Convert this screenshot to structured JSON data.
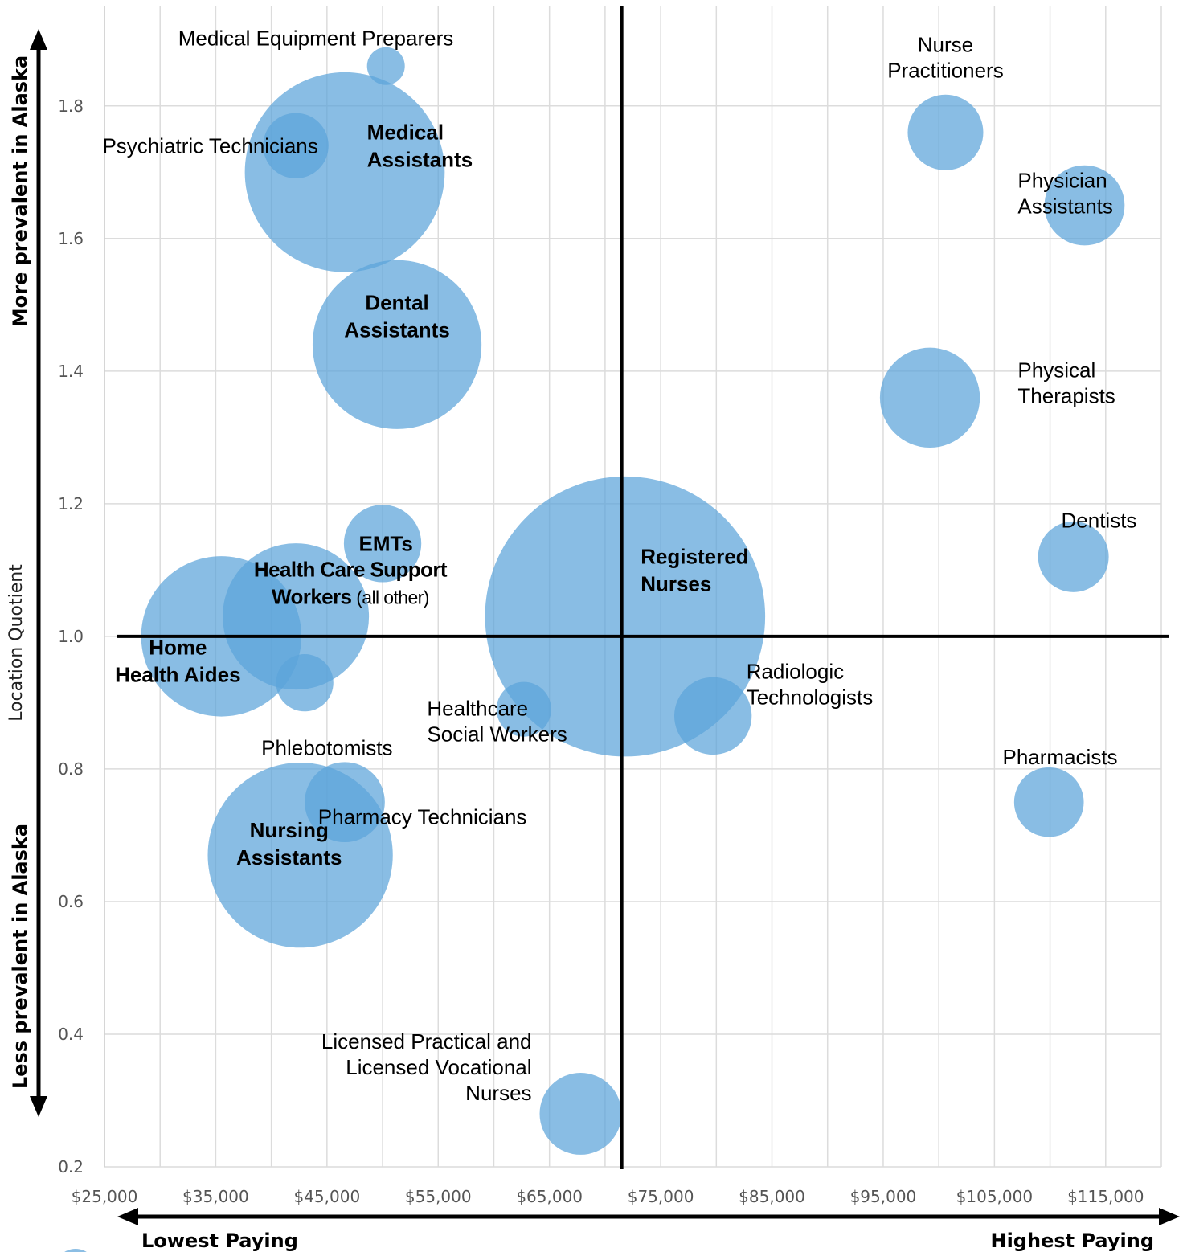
{
  "chart_data": {
    "type": "bubble",
    "ylabel": "Location Quotient",
    "y_arrow_top": "More prevalent in Alaska",
    "y_arrow_bottom": "Less prevalent in Alaska",
    "x_arrow_left": "Lowest Paying",
    "x_arrow_right": "Highest Paying",
    "xlim": [
      25000,
      120000
    ],
    "ylim": [
      0.2,
      1.95
    ],
    "x_ticks": [
      25000,
      35000,
      45000,
      55000,
      65000,
      75000,
      85000,
      95000,
      105000,
      115000
    ],
    "x_tick_labels": [
      "$25,000",
      "$35,000",
      "$45,000",
      "$55,000",
      "$65,000",
      "$75,000",
      "$85,000",
      "$95,000",
      "$105,000",
      "$115,000"
    ],
    "y_ticks": [
      0.2,
      0.4,
      0.6,
      0.8,
      1.0,
      1.2,
      1.4,
      1.6,
      1.8
    ],
    "y_tick_labels": [
      "0.2",
      "0.4",
      "0.6",
      "0.8",
      "1.0",
      "1.2",
      "1.4",
      "1.6",
      "1.8"
    ],
    "grid": true,
    "reference_lines": {
      "x": 71500,
      "y": 1.0
    },
    "bubble_color": "#5ba3d9",
    "points": [
      {
        "name": "Medical Equipment Preparers",
        "x": 50300,
        "y": 1.86,
        "size": 1
      },
      {
        "name": "Medical Assistants",
        "x": 46600,
        "y": 1.7,
        "size": 28
      },
      {
        "name": "Psychiatric Technicians",
        "x": 42200,
        "y": 1.74,
        "size": 3
      },
      {
        "name": "Dental Assistants",
        "x": 51300,
        "y": 1.44,
        "size": 20
      },
      {
        "name": "Nurse Practitioners",
        "x": 100600,
        "y": 1.76,
        "size": 4
      },
      {
        "name": "Physician Assistants",
        "x": 113100,
        "y": 1.65,
        "size": 4.5
      },
      {
        "name": "Physical Therapists",
        "x": 99200,
        "y": 1.36,
        "size": 7
      },
      {
        "name": "Dentists",
        "x": 112100,
        "y": 1.12,
        "size": 3.5
      },
      {
        "name": "EMTs",
        "x": 50000,
        "y": 1.14,
        "size": 4.2
      },
      {
        "name": "Home Health Aides",
        "x": 35500,
        "y": 1.0,
        "size": 18
      },
      {
        "name": "Health Care Support Workers (all other)",
        "x": 42200,
        "y": 1.03,
        "size": 15
      },
      {
        "name": "Phlebotomists",
        "x": 43000,
        "y": 0.93,
        "size": 2.3
      },
      {
        "name": "Registered Nurses",
        "x": 71800,
        "y": 1.03,
        "size": 55
      },
      {
        "name": "Healthcare Social Workers",
        "x": 62700,
        "y": 0.89,
        "size": 2.1
      },
      {
        "name": "Radiologic Technologists",
        "x": 79700,
        "y": 0.88,
        "size": 4.2
      },
      {
        "name": "Pharmacists",
        "x": 109900,
        "y": 0.75,
        "size": 3.4
      },
      {
        "name": "Pharmacy Technicians",
        "x": 46600,
        "y": 0.75,
        "size": 4.5
      },
      {
        "name": "Nursing Assistants",
        "x": 42600,
        "y": 0.67,
        "size": 24
      },
      {
        "name": "Licensed Practical and Licensed Vocational Nurses",
        "x": 67800,
        "y": 0.28,
        "size": 4.7
      }
    ],
    "labels": [
      {
        "lines": [
          "Medical Equipment Preparers"
        ],
        "anchor": "middle",
        "x": 44000,
        "y": 1.902,
        "bold": false
      },
      {
        "lines": [
          "Medical",
          "Assistants"
        ],
        "anchor": "start",
        "x": 48600,
        "y": 1.74,
        "bold": true
      },
      {
        "lines": [
          "Psychiatric Technicians"
        ],
        "anchor": "end",
        "x": 44200,
        "y": 1.74,
        "bold": false
      },
      {
        "lines": [
          "Dental",
          "Assistants"
        ],
        "anchor": "middle",
        "x": 51300,
        "y": 1.483,
        "bold": true
      },
      {
        "lines": [
          "Nurse",
          "Practitioners"
        ],
        "anchor": "middle",
        "x": 100600,
        "y": 1.873,
        "bold": false
      },
      {
        "lines": [
          "Physician",
          "Assistants"
        ],
        "anchor": "start",
        "x": 107100,
        "y": 1.668,
        "bold": false
      },
      {
        "lines": [
          "Physical",
          "Therapists"
        ],
        "anchor": "start",
        "x": 107100,
        "y": 1.382,
        "bold": false
      },
      {
        "lines": [
          "Dentists"
        ],
        "anchor": "middle",
        "x": 114400,
        "y": 1.175,
        "bold": false
      },
      {
        "lines": [
          "EMTs"
        ],
        "anchor": "middle",
        "x": 50300,
        "y": 1.14,
        "bold": true
      },
      {
        "lines": [
          "Home",
          "Health Aides"
        ],
        "anchor": "middle",
        "x": 31600,
        "y": 0.963,
        "bold": true
      },
      {
        "lines": [
          "Registered",
          "Nurses"
        ],
        "anchor": "start",
        "x": 73200,
        "y": 1.1,
        "bold": true
      },
      {
        "lines": [
          "Radiologic",
          "Technologists"
        ],
        "anchor": "start",
        "x": 82700,
        "y": 0.928,
        "bold": false
      },
      {
        "lines": [
          "Phlebotomists"
        ],
        "anchor": "middle",
        "x": 45000,
        "y": 0.832,
        "bold": false
      },
      {
        "lines": [
          "Healthcare",
          "Social Workers"
        ],
        "anchor": "start",
        "x": 54000,
        "y": 0.872,
        "bold": false
      },
      {
        "lines": [
          "Pharmacists"
        ],
        "anchor": "middle",
        "x": 110900,
        "y": 0.818,
        "bold": false
      },
      {
        "lines": [
          "Pharmacy Technicians"
        ],
        "anchor": "start",
        "x": 44200,
        "y": 0.728,
        "bold": false
      },
      {
        "lines": [
          "Nursing",
          "Assistants"
        ],
        "anchor": "middle",
        "x": 41600,
        "y": 0.687,
        "bold": true
      },
      {
        "lines": [
          "Licensed Practical and",
          "Licensed Vocational",
          "Nurses"
        ],
        "anchor": "end",
        "x": 63400,
        "y": 0.35,
        "bold": false
      }
    ],
    "hcsw_label": {
      "line1": "Health Care Support",
      "line2_bold": "Workers",
      "line2_normal": " (all other)",
      "x": 47100,
      "y": 1.09
    }
  }
}
